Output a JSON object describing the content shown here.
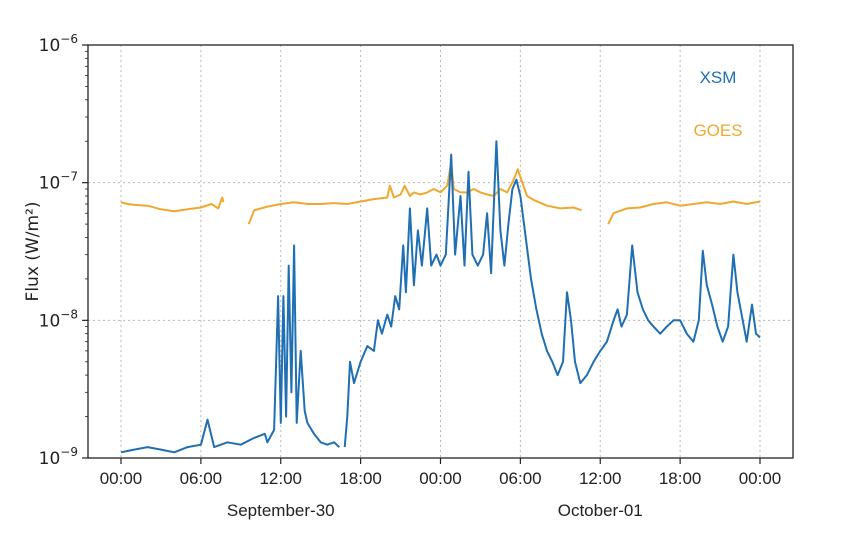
{
  "chart_data": {
    "type": "line",
    "title": "",
    "xlabel": "",
    "ylabel": "Flux (W/m²)",
    "y_scale": "log",
    "ylim": [
      1e-09,
      1e-06
    ],
    "xlim_hours": [
      0,
      48
    ],
    "grid": true,
    "legend_placement": "top-right",
    "x_tick_labels": [
      "00:00",
      "06:00",
      "12:00",
      "18:00",
      "00:00",
      "06:00",
      "12:00",
      "18:00",
      "00:00"
    ],
    "x_tick_hours": [
      0,
      6,
      12,
      18,
      24,
      30,
      36,
      42,
      48
    ],
    "date_labels": [
      {
        "text": "September-30",
        "hour": 12
      },
      {
        "text": "October-01",
        "hour": 36
      }
    ],
    "y_tick_labels": [
      {
        "base": "10",
        "exp": "−9",
        "value": 1e-09
      },
      {
        "base": "10",
        "exp": "−8",
        "value": 1e-08
      },
      {
        "base": "10",
        "exp": "−7",
        "value": 1e-07
      },
      {
        "base": "10",
        "exp": "−6",
        "value": 1e-06
      }
    ],
    "series": [
      {
        "name": "XSM",
        "color": "#1f6fb2",
        "segments": [
          [
            [
              0,
              1.1e-09
            ],
            [
              1,
              1.15e-09
            ],
            [
              2,
              1.2e-09
            ],
            [
              3,
              1.15e-09
            ],
            [
              4,
              1.1e-09
            ],
            [
              5,
              1.2e-09
            ],
            [
              6,
              1.25e-09
            ],
            [
              6.5,
              1.9e-09
            ],
            [
              7,
              1.2e-09
            ],
            [
              8,
              1.3e-09
            ],
            [
              9,
              1.25e-09
            ],
            [
              10,
              1.4e-09
            ],
            [
              10.8,
              1.5e-09
            ],
            [
              11,
              1.3e-09
            ],
            [
              11.5,
              1.6e-09
            ],
            [
              11.8,
              1.5e-08
            ],
            [
              12,
              1.8e-09
            ],
            [
              12.2,
              1.5e-08
            ],
            [
              12.4,
              2e-09
            ],
            [
              12.6,
              2.5e-08
            ],
            [
              12.8,
              3e-09
            ],
            [
              13,
              3.5e-08
            ],
            [
              13.2,
              1.8e-09
            ],
            [
              13.5,
              6e-09
            ],
            [
              13.8,
              2.2e-09
            ],
            [
              14,
              1.8e-09
            ],
            [
              14.5,
              1.5e-09
            ],
            [
              15,
              1.3e-09
            ],
            [
              15.5,
              1.25e-09
            ],
            [
              16,
              1.3e-09
            ],
            [
              16.4,
              1.2e-09
            ]
          ],
          [
            [
              16.8,
              1.2e-09
            ],
            [
              17,
              2e-09
            ],
            [
              17.2,
              5e-09
            ],
            [
              17.5,
              3.5e-09
            ],
            [
              18,
              5e-09
            ],
            [
              18.5,
              6.5e-09
            ],
            [
              19,
              6e-09
            ],
            [
              19.3,
              1e-08
            ],
            [
              19.6,
              8e-09
            ],
            [
              20,
              1.1e-08
            ],
            [
              20.3,
              9e-09
            ],
            [
              20.6,
              1.5e-08
            ],
            [
              20.9,
              1.2e-08
            ],
            [
              21.2,
              3.5e-08
            ],
            [
              21.4,
              1.6e-08
            ],
            [
              21.7,
              6.5e-08
            ],
            [
              22,
              1.8e-08
            ],
            [
              22.3,
              4.5e-08
            ],
            [
              22.6,
              2.5e-08
            ],
            [
              23,
              6.5e-08
            ],
            [
              23.3,
              2.5e-08
            ],
            [
              23.7,
              3e-08
            ],
            [
              24,
              2.5e-08
            ],
            [
              24.4,
              3e-08
            ],
            [
              24.8,
              1.6e-07
            ],
            [
              25.1,
              3e-08
            ],
            [
              25.5,
              8e-08
            ],
            [
              25.8,
              2.5e-08
            ],
            [
              26.1,
              1.2e-07
            ],
            [
              26.4,
              3e-08
            ],
            [
              26.8,
              2.5e-08
            ],
            [
              27.2,
              3e-08
            ],
            [
              27.5,
              6e-08
            ],
            [
              27.8,
              2.2e-08
            ],
            [
              28.2,
              2e-07
            ],
            [
              28.5,
              4.5e-08
            ],
            [
              28.8,
              2.5e-08
            ],
            [
              29.1,
              5e-08
            ],
            [
              29.4,
              9e-08
            ],
            [
              29.7,
              1.05e-07
            ],
            [
              30,
              8e-08
            ],
            [
              30.4,
              4e-08
            ],
            [
              30.8,
              2e-08
            ],
            [
              31.2,
              1.2e-08
            ],
            [
              31.6,
              8e-09
            ],
            [
              32,
              6e-09
            ],
            [
              32.4,
              5e-09
            ],
            [
              32.8,
              4e-09
            ],
            [
              33.2,
              5e-09
            ],
            [
              33.5,
              1.6e-08
            ],
            [
              33.8,
              1e-08
            ],
            [
              34.1,
              5e-09
            ],
            [
              34.5,
              3.5e-09
            ],
            [
              35,
              4e-09
            ],
            [
              35.5,
              5e-09
            ],
            [
              36,
              6e-09
            ],
            [
              36.5,
              7e-09
            ],
            [
              37,
              1e-08
            ],
            [
              37.3,
              1.2e-08
            ],
            [
              37.6,
              9e-09
            ],
            [
              38,
              1.1e-08
            ],
            [
              38.4,
              3.5e-08
            ],
            [
              38.8,
              1.6e-08
            ],
            [
              39.2,
              1.2e-08
            ],
            [
              39.6,
              1e-08
            ],
            [
              40,
              9e-09
            ],
            [
              40.5,
              8e-09
            ],
            [
              41,
              9e-09
            ],
            [
              41.5,
              1e-08
            ],
            [
              42,
              1e-08
            ],
            [
              42.5,
              8e-09
            ],
            [
              43,
              7e-09
            ],
            [
              43.4,
              1e-08
            ],
            [
              43.7,
              3.2e-08
            ],
            [
              44,
              1.8e-08
            ],
            [
              44.4,
              1.3e-08
            ],
            [
              44.8,
              9e-09
            ],
            [
              45.2,
              7e-09
            ],
            [
              45.6,
              9e-09
            ],
            [
              46,
              3e-08
            ],
            [
              46.3,
              1.6e-08
            ],
            [
              46.7,
              1e-08
            ],
            [
              47,
              7e-09
            ],
            [
              47.4,
              1.3e-08
            ],
            [
              47.7,
              8e-09
            ],
            [
              48,
              7.5e-09
            ]
          ]
        ]
      },
      {
        "name": "GOES",
        "color": "#f0a830",
        "segments": [
          [
            [
              0,
              7.2e-08
            ],
            [
              0.5,
              7e-08
            ],
            [
              1,
              6.9e-08
            ],
            [
              2,
              6.8e-08
            ],
            [
              3,
              6.4e-08
            ],
            [
              4,
              6.2e-08
            ],
            [
              5,
              6.4e-08
            ],
            [
              6,
              6.6e-08
            ],
            [
              6.8,
              7e-08
            ],
            [
              7.3,
              6.5e-08
            ],
            [
              7.6,
              7.8e-08
            ],
            [
              7.7,
              7.2e-08
            ]
          ],
          [
            [
              9.6,
              5e-08
            ],
            [
              10,
              6.3e-08
            ],
            [
              11,
              6.7e-08
            ],
            [
              12,
              7e-08
            ],
            [
              13,
              7.2e-08
            ],
            [
              14,
              7e-08
            ],
            [
              15,
              7e-08
            ],
            [
              16,
              7.1e-08
            ],
            [
              17,
              7e-08
            ],
            [
              18,
              7.3e-08
            ],
            [
              19,
              7.6e-08
            ],
            [
              20,
              7.8e-08
            ],
            [
              20.2,
              9.5e-08
            ],
            [
              20.5,
              7.8e-08
            ],
            [
              21,
              8.2e-08
            ],
            [
              21.3,
              9.5e-08
            ],
            [
              21.7,
              8e-08
            ],
            [
              22,
              8.5e-08
            ],
            [
              22.5,
              8.2e-08
            ],
            [
              23,
              8.5e-08
            ],
            [
              23.5,
              9e-08
            ],
            [
              24,
              8.5e-08
            ],
            [
              24.5,
              9.5e-08
            ],
            [
              24.8,
              1.4e-07
            ],
            [
              25,
              9e-08
            ],
            [
              25.5,
              8.5e-08
            ],
            [
              26,
              8.5e-08
            ],
            [
              26.5,
              9e-08
            ],
            [
              27,
              8.5e-08
            ],
            [
              27.5,
              8.2e-08
            ],
            [
              28,
              8e-08
            ],
            [
              28.5,
              9e-08
            ],
            [
              29,
              8.5e-08
            ],
            [
              29.5,
              1.05e-07
            ],
            [
              29.8,
              1.25e-07
            ],
            [
              30,
              1.1e-07
            ],
            [
              30.5,
              8e-08
            ],
            [
              31,
              7.5e-08
            ],
            [
              32,
              6.8e-08
            ],
            [
              33,
              6.5e-08
            ],
            [
              34,
              6.6e-08
            ],
            [
              34.6,
              6.3e-08
            ]
          ],
          [
            [
              36.6,
              5e-08
            ],
            [
              37,
              6e-08
            ],
            [
              38,
              6.5e-08
            ],
            [
              39,
              6.6e-08
            ],
            [
              40,
              7e-08
            ],
            [
              41,
              7.2e-08
            ],
            [
              42,
              6.8e-08
            ],
            [
              43,
              7e-08
            ],
            [
              44,
              7.2e-08
            ],
            [
              45,
              7e-08
            ],
            [
              46,
              7.3e-08
            ],
            [
              47,
              7e-08
            ],
            [
              48,
              7.3e-08
            ]
          ]
        ]
      }
    ]
  }
}
